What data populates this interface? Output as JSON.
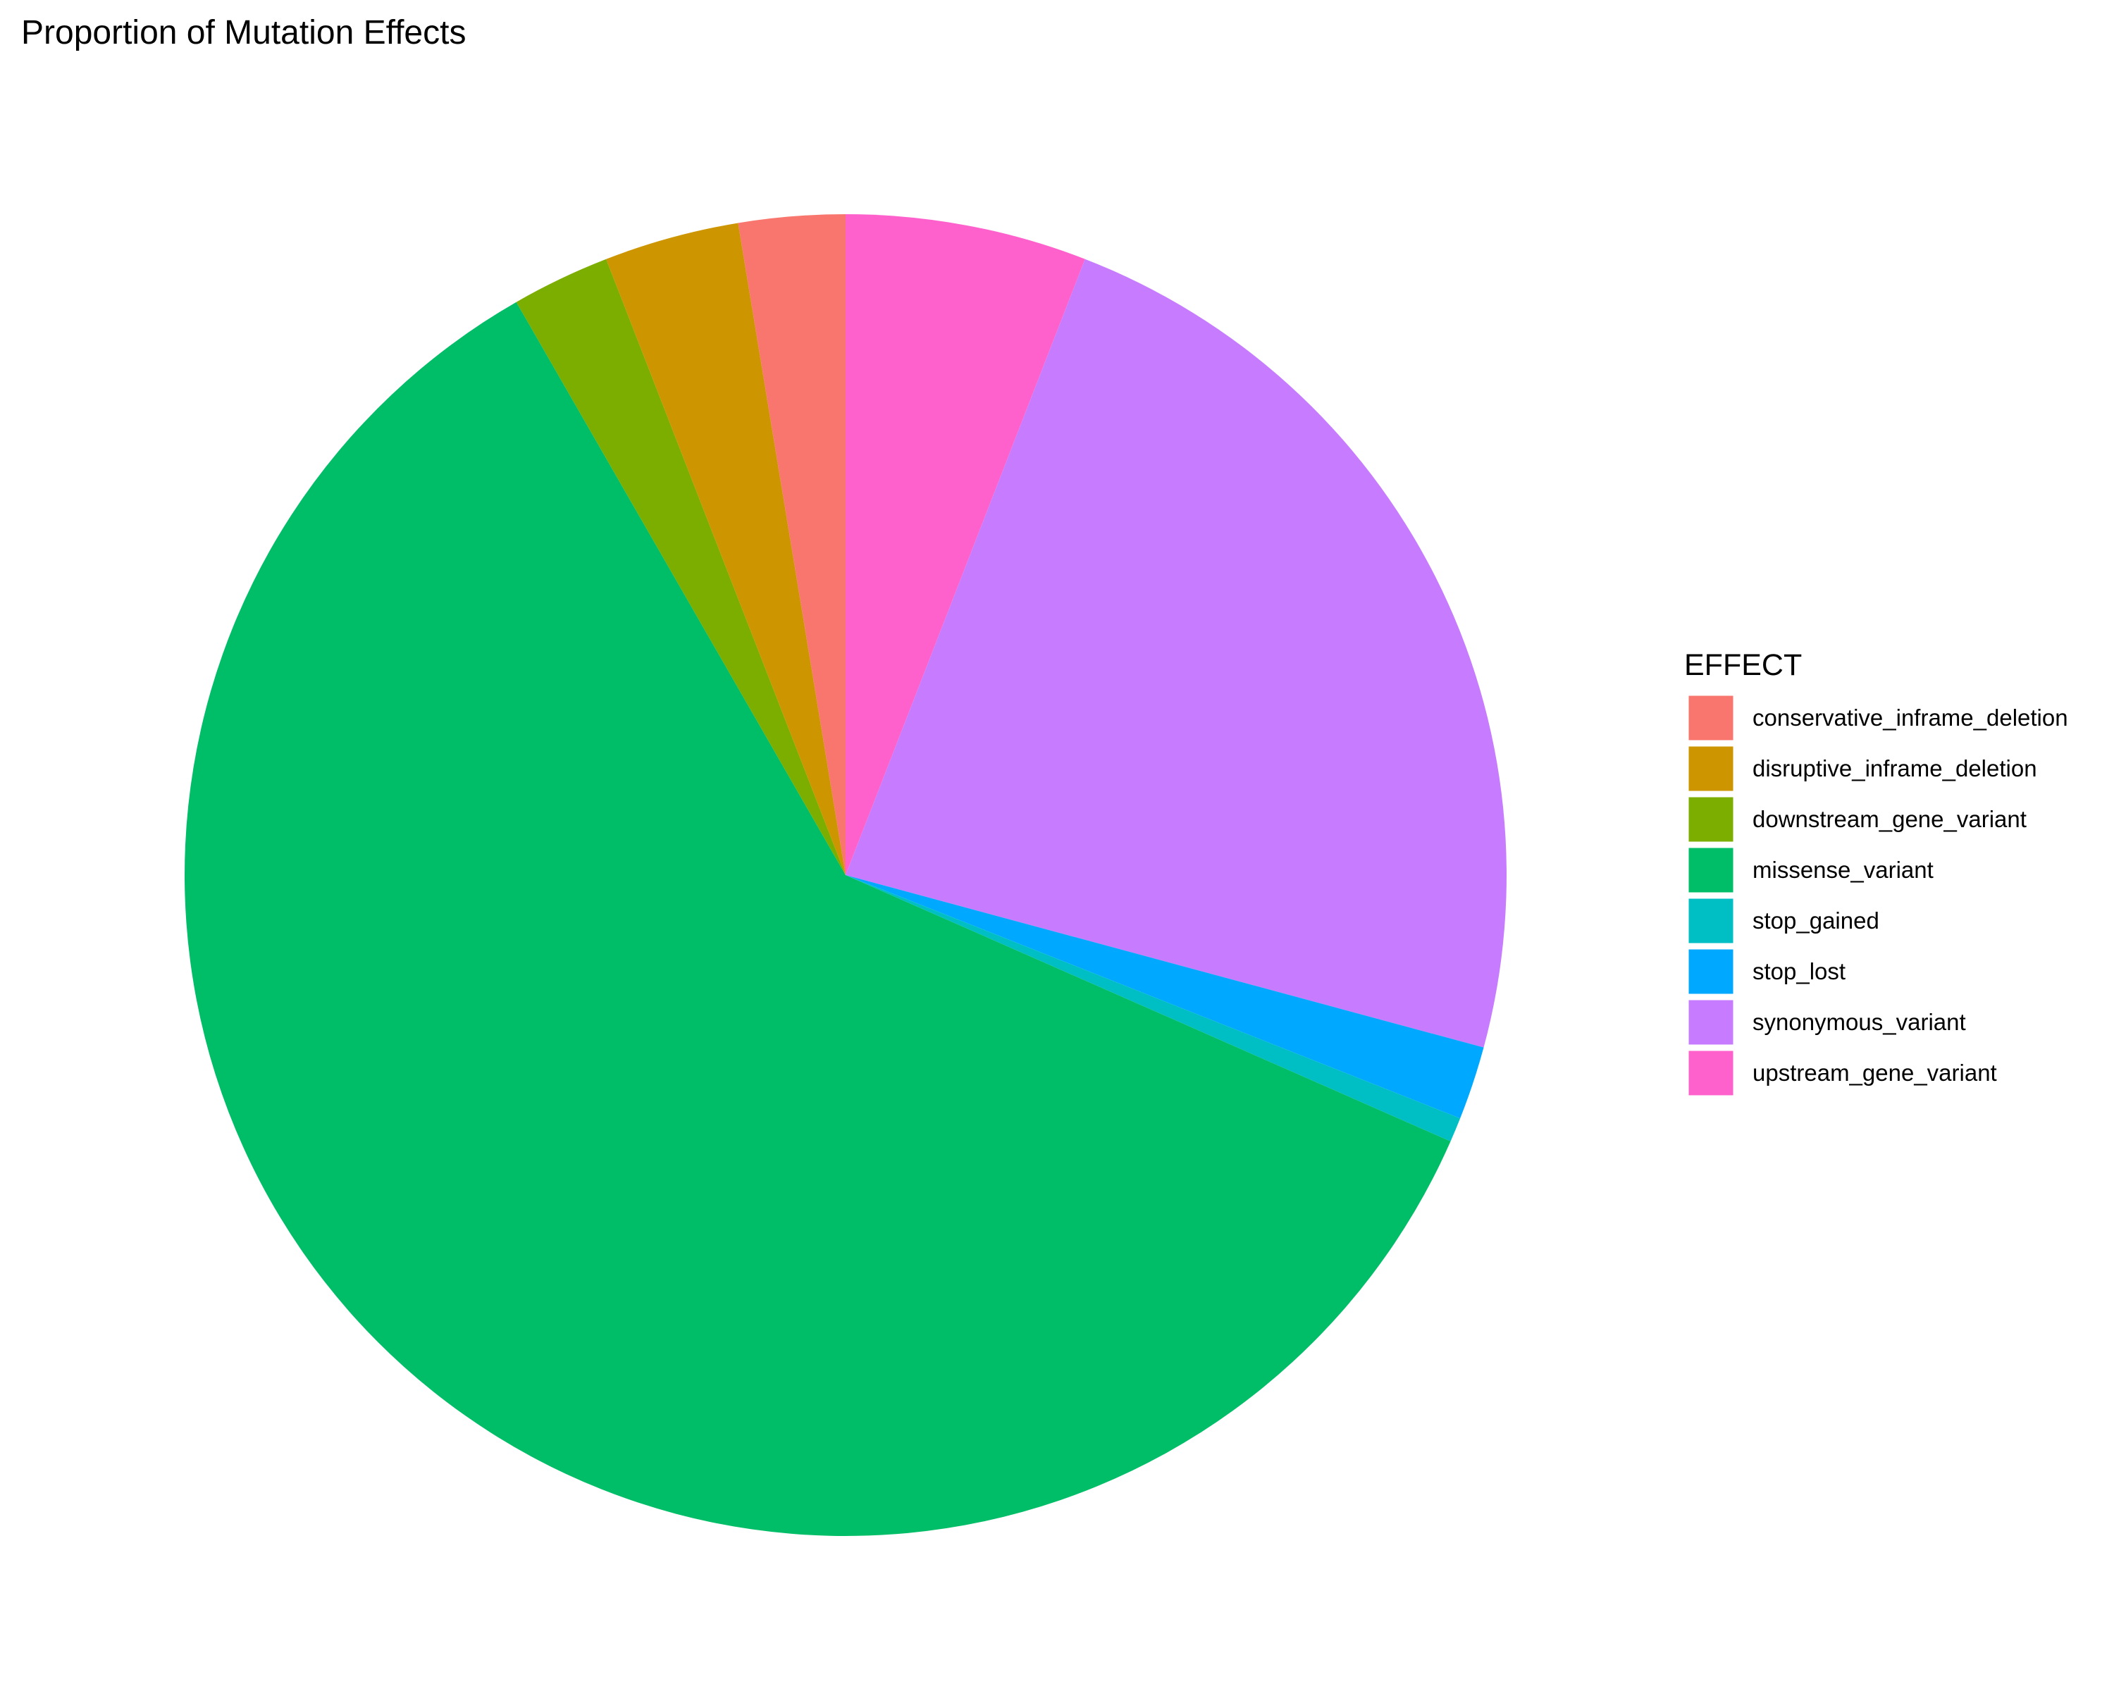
{
  "chart_data": {
    "type": "pie",
    "title": "Proportion of Mutation Effects",
    "legend_title": "EFFECT",
    "legend_position": "right",
    "start_angle_deg": 0,
    "direction": "clockwise",
    "slices": [
      {
        "label": "upstream_gene_variant",
        "value": 5.9,
        "color": "#FF61CC"
      },
      {
        "label": "synonymous_variant",
        "value": 23.3,
        "color": "#C77CFF"
      },
      {
        "label": "stop_lost",
        "value": 1.8,
        "color": "#00A9FF"
      },
      {
        "label": "stop_gained",
        "value": 0.6,
        "color": "#00BFC4"
      },
      {
        "label": "missense_variant",
        "value": 60.1,
        "color": "#00BE67"
      },
      {
        "label": "downstream_gene_variant",
        "value": 2.4,
        "color": "#7CAE00"
      },
      {
        "label": "disruptive_inframe_deletion",
        "value": 3.3,
        "color": "#CD9600"
      },
      {
        "label": "conservative_inframe_deletion",
        "value": 2.6,
        "color": "#F8766D"
      }
    ],
    "legend_order": [
      "conservative_inframe_deletion",
      "disruptive_inframe_deletion",
      "downstream_gene_variant",
      "missense_variant",
      "stop_gained",
      "stop_lost",
      "synonymous_variant",
      "upstream_gene_variant"
    ]
  }
}
